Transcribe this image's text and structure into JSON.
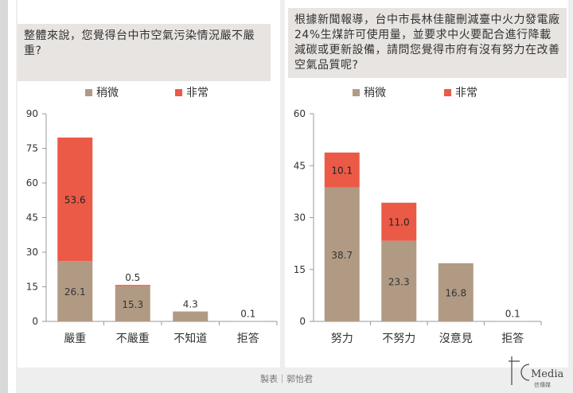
{
  "chart_data": [
    {
      "type": "bar",
      "stacked": true,
      "question": "整體來說，您覺得台中市空氣污染情況嚴不嚴重?",
      "categories": [
        "嚴重",
        "不嚴重",
        "不知道",
        "拒答"
      ],
      "series": [
        {
          "name": "稍微",
          "color": "#b19a84",
          "values": [
            26.1,
            15.3,
            4.3,
            0.1
          ]
        },
        {
          "name": "非常",
          "color": "#eb5a47",
          "values": [
            53.6,
            0.5,
            0,
            0
          ]
        }
      ],
      "ylim": [
        0,
        90
      ],
      "yticks": [
        0,
        15,
        30,
        45,
        60,
        75,
        90
      ],
      "legend_position": "top-center",
      "grid": false
    },
    {
      "type": "bar",
      "stacked": true,
      "question": "根據新聞報導，台中市長林佳龍刪減臺中火力發電廠24%生煤許可使用量，並要求中火要配合進行降載減碳或更新設備，請問您覺得市府有沒有努力在改善空氣品質呢?",
      "categories": [
        "努力",
        "不努力",
        "沒意見",
        "拒答"
      ],
      "series": [
        {
          "name": "稍微",
          "color": "#b19a84",
          "values": [
            38.7,
            23.3,
            16.8,
            0.1
          ]
        },
        {
          "name": "非常",
          "color": "#eb5a47",
          "values": [
            10.1,
            11.0,
            0,
            0
          ]
        }
      ],
      "ylim": [
        0,
        60
      ],
      "yticks": [
        0,
        15,
        30,
        45,
        60
      ],
      "legend_position": "top-center",
      "grid": false
    }
  ],
  "credit": "製表｜郭怡君",
  "logo": {
    "text": "Media",
    "subtext": "信傳媒"
  }
}
